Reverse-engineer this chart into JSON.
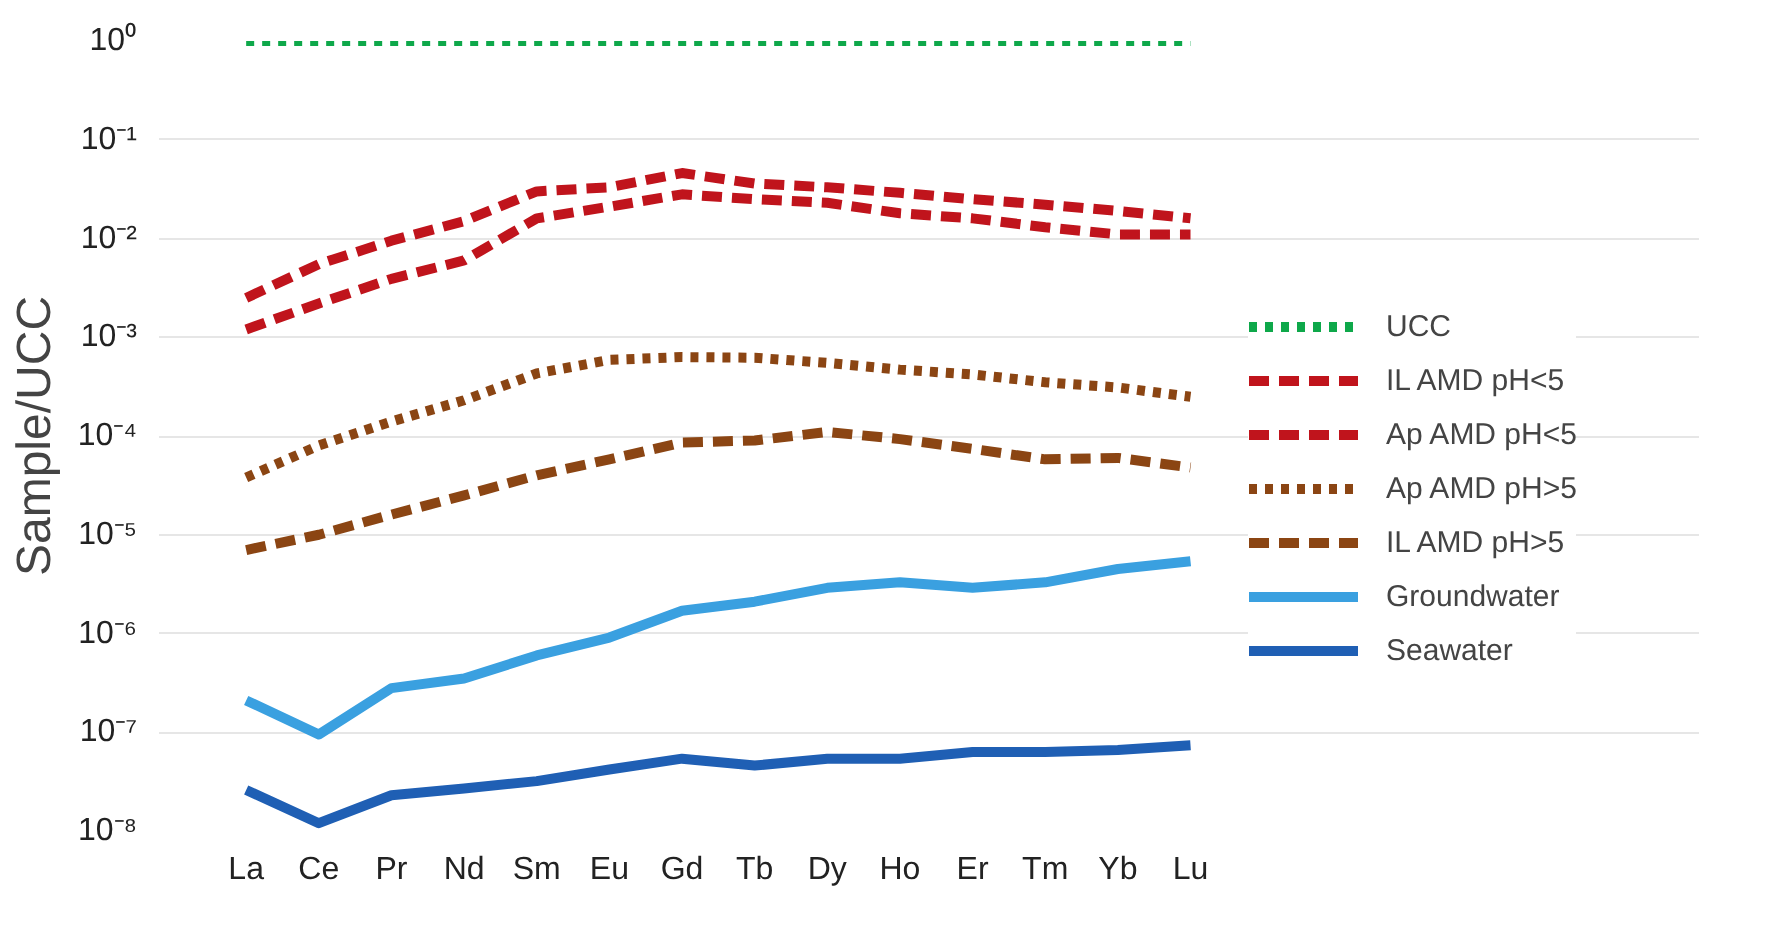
{
  "chart_data": {
    "type": "line",
    "ylabel": "Sample/UCC",
    "categories": [
      "La",
      "Ce",
      "Pr",
      "Nd",
      "Sm",
      "Eu",
      "Gd",
      "Tb",
      "Dy",
      "Ho",
      "Er",
      "Tm",
      "Yb",
      "Lu"
    ],
    "log": "y",
    "ylim": [
      1e-08,
      1
    ],
    "grid": "y",
    "legend": "right",
    "marker": "none",
    "yticks": [
      {
        "value": 1,
        "label": "10⁰"
      },
      {
        "value": 0.1,
        "label": "10⁻¹"
      },
      {
        "value": 0.01,
        "label": "10⁻²"
      },
      {
        "value": 0.001,
        "label": "10⁻³"
      },
      {
        "value": 0.0001,
        "label": "10⁻⁴"
      },
      {
        "value": 1e-05,
        "label": "10⁻⁵"
      },
      {
        "value": 1e-06,
        "label": "10⁻⁶"
      },
      {
        "value": 1e-07,
        "label": "10⁻⁷"
      },
      {
        "value": 1e-08,
        "label": "10⁻⁸"
      }
    ],
    "series": [
      {
        "name": "UCC",
        "color": "#0ea84a",
        "line_style": "dotted",
        "values": [
          1,
          1,
          1,
          1,
          1,
          1,
          1,
          1,
          1,
          1,
          1,
          1,
          1,
          1
        ]
      },
      {
        "name": "IL AMD pH<5",
        "color": "#c0141c",
        "line_style": "dashed",
        "values": [
          0.0025,
          0.0055,
          0.0095,
          0.015,
          0.03,
          0.033,
          0.046,
          0.036,
          0.033,
          0.029,
          0.025,
          0.022,
          0.019,
          0.016
        ]
      },
      {
        "name": "Ap AMD pH<5",
        "color": "#c0141c",
        "line_style": "dashed",
        "values": [
          0.0012,
          0.0022,
          0.0039,
          0.006,
          0.016,
          0.021,
          0.028,
          0.025,
          0.023,
          0.018,
          0.016,
          0.013,
          0.011,
          0.011
        ]
      },
      {
        "name": "Ap AMD pH>5",
        "color": "#8b4513",
        "line_style": "dotted",
        "values": [
          3.8e-05,
          8e-05,
          0.00014,
          0.00023,
          0.00043,
          0.00059,
          0.00063,
          0.00062,
          0.00055,
          0.00047,
          0.00042,
          0.00035,
          0.00031,
          0.00025
        ]
      },
      {
        "name": "IL AMD pH>5",
        "color": "#8b4513",
        "line_style": "dashed",
        "values": [
          7e-06,
          1e-05,
          1.6e-05,
          2.5e-05,
          4e-05,
          5.8e-05,
          8.6e-05,
          9e-05,
          0.00011,
          9.3e-05,
          7.4e-05,
          5.8e-05,
          6e-05,
          4.8e-05
        ]
      },
      {
        "name": "Groundwater",
        "color": "#3aa0e0",
        "line_style": "solid",
        "values": [
          2.1e-07,
          9.5e-08,
          2.8e-07,
          3.5e-07,
          6e-07,
          9.1e-07,
          1.7e-06,
          2.1e-06,
          2.9e-06,
          3.3e-06,
          2.9e-06,
          3.3e-06,
          4.5e-06,
          5.4e-06
        ]
      },
      {
        "name": "Seawater",
        "color": "#1f5fb4",
        "line_style": "solid",
        "values": [
          2.6e-08,
          1.2e-08,
          2.3e-08,
          2.7e-08,
          3.2e-08,
          4.2e-08,
          5.4e-08,
          4.6e-08,
          5.4e-08,
          5.4e-08,
          6.3e-08,
          6.3e-08,
          6.6e-08,
          7.4e-08
        ]
      }
    ]
  }
}
